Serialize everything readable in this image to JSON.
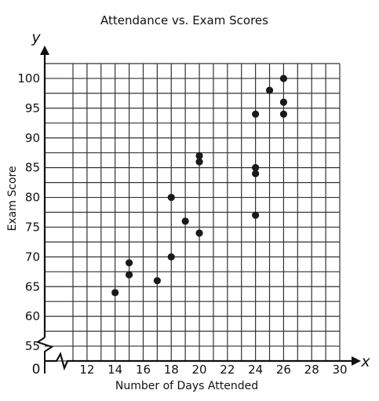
{
  "chart_data": {
    "type": "scatter",
    "title": "Attendance vs. Exam Scores",
    "xlabel": "Number of Days Attended",
    "ylabel": "Exam Score",
    "x_axis_letter": "x",
    "y_axis_letter": "y",
    "origin_label": "0",
    "xlim": [
      12,
      30
    ],
    "ylim": [
      55,
      100
    ],
    "x_ticks": [
      12,
      14,
      16,
      18,
      20,
      22,
      24,
      26,
      28,
      30
    ],
    "y_ticks": [
      55,
      60,
      65,
      70,
      75,
      80,
      85,
      90,
      95,
      100
    ],
    "grid": true,
    "axis_breaks": true,
    "points": [
      {
        "x": 14,
        "y": 64
      },
      {
        "x": 15,
        "y": 69
      },
      {
        "x": 15,
        "y": 67
      },
      {
        "x": 17,
        "y": 66
      },
      {
        "x": 18,
        "y": 80
      },
      {
        "x": 18,
        "y": 70
      },
      {
        "x": 19,
        "y": 76
      },
      {
        "x": 20,
        "y": 87
      },
      {
        "x": 20,
        "y": 86
      },
      {
        "x": 20,
        "y": 74
      },
      {
        "x": 24,
        "y": 94
      },
      {
        "x": 24,
        "y": 85
      },
      {
        "x": 24,
        "y": 84
      },
      {
        "x": 24,
        "y": 77
      },
      {
        "x": 25,
        "y": 98
      },
      {
        "x": 26,
        "y": 100
      },
      {
        "x": 26,
        "y": 96
      },
      {
        "x": 26,
        "y": 94
      }
    ],
    "colors": {
      "points": "#1a1a1a",
      "grid": "#333333",
      "axis": "#111111"
    }
  }
}
